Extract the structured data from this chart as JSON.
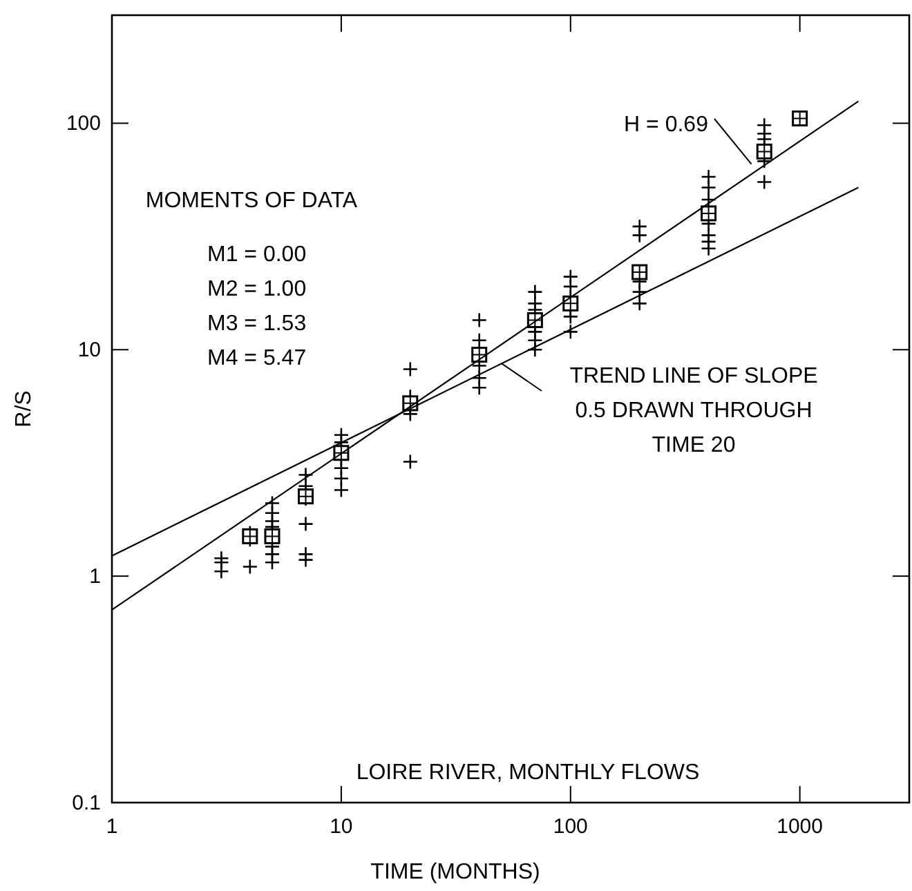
{
  "chart_data": {
    "type": "scatter",
    "xlabel": "TIME (MONTHS)",
    "ylabel": "R/S",
    "log": "xy",
    "grid": false,
    "xlim": [
      1,
      3000
    ],
    "ylim": [
      0.1,
      300
    ],
    "xticks": [
      1,
      10,
      100,
      1000
    ],
    "yticks": [
      0.1,
      1,
      10,
      100
    ],
    "series": [
      {
        "marker": "cross",
        "color": "#000000",
        "x": [
          3,
          3,
          3,
          4,
          4,
          4,
          5,
          5,
          5,
          5,
          5,
          5,
          5,
          5,
          7,
          7,
          7,
          7,
          7,
          7,
          7,
          10,
          10,
          10,
          10,
          10,
          10,
          10,
          20,
          20,
          20,
          20,
          20,
          40,
          40,
          40,
          40,
          40,
          40,
          70,
          70,
          70,
          70,
          70,
          70,
          70,
          100,
          100,
          100,
          100,
          100,
          100,
          200,
          200,
          200,
          200,
          200,
          200,
          400,
          400,
          400,
          400,
          400,
          400,
          400,
          400,
          700,
          700,
          700,
          700,
          700,
          700,
          700,
          1000
        ],
        "values": [
          1.2,
          1.15,
          1.05,
          1.55,
          1.45,
          1.1,
          2.1,
          1.9,
          1.75,
          1.65,
          1.5,
          1.35,
          1.25,
          1.15,
          2.8,
          2.5,
          2.35,
          2.2,
          1.7,
          1.25,
          1.18,
          4.2,
          3.9,
          3.6,
          3.3,
          3.0,
          2.7,
          2.4,
          8.2,
          6.2,
          5.6,
          5.2,
          3.2,
          13.5,
          11,
          9.5,
          8.5,
          7.5,
          6.8,
          18,
          16,
          15,
          13,
          12,
          11,
          10,
          21,
          19,
          17,
          15,
          14,
          12,
          35,
          32,
          22,
          20,
          18,
          16,
          58,
          52,
          46,
          40,
          36,
          32,
          30,
          28,
          98,
          90,
          85,
          80,
          72,
          68,
          55,
          105
        ]
      },
      {
        "marker": "square",
        "color": "#000000",
        "x": [
          4,
          5,
          7,
          10,
          20,
          40,
          70,
          100,
          200,
          400,
          700,
          1000
        ],
        "values": [
          1.5,
          1.5,
          2.25,
          3.5,
          5.8,
          9.5,
          13.5,
          16,
          22,
          40,
          75,
          105
        ]
      },
      {
        "type": "line",
        "color": "#000000",
        "x": [
          1,
          1800
        ],
        "values": [
          0.71,
          125
        ]
      },
      {
        "type": "line",
        "color": "#000000",
        "x": [
          1,
          1800
        ],
        "values": [
          1.23,
          52
        ]
      }
    ],
    "annotations": [
      "MOMENTS OF DATA",
      "M1 = 0.00",
      "M2 = 1.00",
      "M3 = 1.53",
      "M4 = 5.47",
      {
        "text": "H = 0.69",
        "x": 615,
        "y": 66
      },
      {
        "text": "TREND LINE OF SLOPE\n0.5 DRAWN THROUGH\nTIME 20",
        "x": 50,
        "y": 8.7
      },
      "LOIRE RIVER, MONTHLY FLOWS"
    ]
  }
}
